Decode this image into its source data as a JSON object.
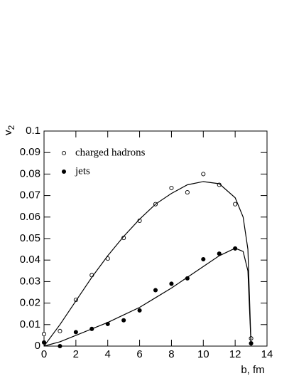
{
  "chart_data": {
    "type": "scatter",
    "xlabel": "b, fm",
    "ylabel": {
      "text": "v",
      "subscript": "2"
    },
    "xlim": [
      0,
      14
    ],
    "xticks": [
      0,
      2,
      4,
      6,
      8,
      10,
      12,
      14
    ],
    "ylim": [
      0,
      0.1
    ],
    "yticks": [
      0,
      0.01,
      0.02,
      0.03,
      0.04,
      0.05,
      0.06,
      0.07,
      0.08,
      0.09,
      0.1
    ],
    "legend": "upper left",
    "series": [
      {
        "name": "charged hadrons",
        "marker": "open",
        "color": "#000000",
        "x": [
          0,
          1,
          2,
          3,
          4,
          5,
          6,
          7,
          8,
          9,
          10,
          11,
          12,
          13
        ],
        "values": [
          0.0056,
          0.007,
          0.0215,
          0.033,
          0.0407,
          0.0503,
          0.0583,
          0.066,
          0.0735,
          0.0715,
          0.08,
          0.075,
          0.066,
          0.0036
        ]
      },
      {
        "name": "jets",
        "marker": "filled",
        "color": "#000000",
        "x": [
          0,
          1,
          2,
          3,
          4,
          5,
          6,
          7,
          8,
          9,
          10,
          11,
          12,
          13
        ],
        "values": [
          0.0017,
          0.0,
          0.0065,
          0.008,
          0.0103,
          0.012,
          0.0166,
          0.026,
          0.029,
          0.0315,
          0.0404,
          0.043,
          0.0454,
          0.0013
        ]
      },
      {
        "marker": "line",
        "color": "#000000",
        "x": [
          0,
          1,
          2,
          3,
          4,
          5,
          6,
          7,
          8,
          9,
          10,
          11,
          12,
          12.5,
          12.8,
          13
        ],
        "values": [
          0,
          0.01,
          0.021,
          0.032,
          0.042,
          0.051,
          0.059,
          0.066,
          0.071,
          0.075,
          0.0765,
          0.0755,
          0.069,
          0.06,
          0.045,
          0
        ]
      },
      {
        "marker": "line",
        "color": "#000000",
        "x": [
          0,
          1,
          2,
          3,
          4,
          5,
          6,
          7,
          8,
          9,
          10,
          11,
          12,
          12.5,
          12.8,
          13
        ],
        "values": [
          0,
          0.002,
          0.005,
          0.008,
          0.011,
          0.0145,
          0.018,
          0.0225,
          0.027,
          0.032,
          0.037,
          0.042,
          0.0455,
          0.044,
          0.035,
          0
        ]
      }
    ]
  }
}
